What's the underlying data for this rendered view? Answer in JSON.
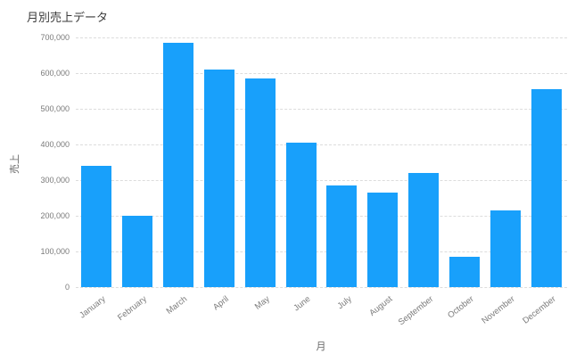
{
  "chart_data": {
    "type": "bar",
    "title": "月別売上データ",
    "xlabel": "月",
    "ylabel": "売上",
    "categories": [
      "January",
      "February",
      "March",
      "April",
      "May",
      "June",
      "July",
      "August",
      "September",
      "October",
      "November",
      "December"
    ],
    "values": [
      340000,
      200000,
      685000,
      610000,
      585000,
      405000,
      285000,
      265000,
      320000,
      85000,
      215000,
      555000
    ],
    "ylim": [
      0,
      700000
    ],
    "ytick_step": 100000,
    "ytick_labels": [
      "0",
      "100,000",
      "200,000",
      "300,000",
      "400,000",
      "500,000",
      "600,000",
      "700,000"
    ],
    "bar_color": "#18A0FB",
    "grid": true,
    "grid_style": "dashed",
    "legend": "none"
  }
}
